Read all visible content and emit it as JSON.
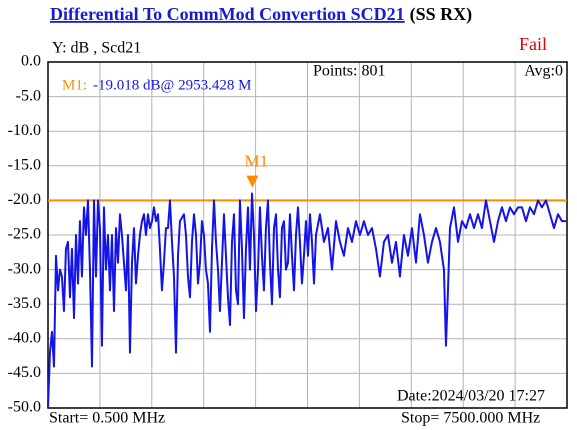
{
  "chart_data": {
    "type": "line",
    "title": "Differential To CommMod Convertion SCD21",
    "title_suffix": "(SS RX)",
    "y_label": "Y: dB , Scd21",
    "status": "Fail",
    "points_info": "Points: 801",
    "avg_info": "Avg:0",
    "date": "Date:2024/03/20 17:27",
    "start": "Start= 0.500 MHz",
    "stop": "Stop= 7500.000 MHz",
    "xlim": [
      0.5,
      7500
    ],
    "ylim": [
      -50,
      0
    ],
    "yticks": [
      {
        "value": 0,
        "label": "0.0"
      },
      {
        "value": -5,
        "label": "-5.0"
      },
      {
        "value": -10,
        "label": "-10.0"
      },
      {
        "value": -15,
        "label": "-15.0"
      },
      {
        "value": -20,
        "label": "-20.0"
      },
      {
        "value": -25,
        "label": "-25.0"
      },
      {
        "value": -30,
        "label": "-30.0"
      },
      {
        "value": -35,
        "label": "-35.0"
      },
      {
        "value": -40,
        "label": "-40.0"
      },
      {
        "value": -45,
        "label": "-45.0"
      },
      {
        "value": -50,
        "label": "-50.0"
      }
    ],
    "grid": true,
    "limit_line": {
      "value": -20,
      "color": "#ff8c00"
    },
    "marker": {
      "name": "M1",
      "label": "M1:",
      "readout": "-19.018 dB@ 2953.428 M",
      "x": 2953.428,
      "y": -19.018,
      "color": "#ff8c00"
    },
    "series": [
      {
        "name": "Scd21",
        "color": "#1414e6",
        "x": [
          0.5,
          29,
          58,
          87,
          116,
          145,
          173,
          202,
          231,
          260,
          289,
          318,
          347,
          376,
          405,
          434,
          462,
          491,
          520,
          549,
          578,
          607,
          636,
          665,
          694,
          723,
          751,
          780,
          809,
          838,
          867,
          896,
          925,
          954,
          983,
          1012,
          1040,
          1069,
          1098,
          1127,
          1156,
          1185,
          1214,
          1243,
          1272,
          1301,
          1329,
          1358,
          1387,
          1416,
          1445,
          1474,
          1503,
          1532,
          1561,
          1590,
          1618,
          1647,
          1676,
          1705,
          1734,
          1763,
          1792,
          1821,
          1850,
          1879,
          1907,
          1965,
          1994,
          2023,
          2052,
          2081,
          2110,
          2139,
          2168,
          2196,
          2225,
          2254,
          2283,
          2312,
          2341,
          2370,
          2399,
          2428,
          2457,
          2485,
          2514,
          2543,
          2572,
          2601,
          2630,
          2659,
          2688,
          2717,
          2746,
          2774,
          2803,
          2832,
          2861,
          2890,
          2919,
          2948,
          2977,
          3006,
          3035,
          3063,
          3092,
          3121,
          3150,
          3179,
          3208,
          3237,
          3266,
          3295,
          3324,
          3352,
          3381,
          3410,
          3439,
          3468,
          3497,
          3526,
          3555,
          3584,
          3613,
          3641,
          3670,
          3699,
          3728,
          3757,
          3786,
          3815,
          3844,
          3873,
          3930,
          3988,
          4046,
          4104,
          4162,
          4219,
          4277,
          4335,
          4393,
          4451,
          4508,
          4566,
          4624,
          4682,
          4740,
          4797,
          4855,
          4913,
          4971,
          5029,
          5086,
          5144,
          5202,
          5260,
          5318,
          5375,
          5433,
          5491,
          5549,
          5607,
          5664,
          5722,
          5751,
          5780,
          5809,
          5867,
          5925,
          5982,
          6040,
          6098,
          6156,
          6214,
          6271,
          6329,
          6387,
          6445,
          6503,
          6560,
          6618,
          6676,
          6734,
          6792,
          6849,
          6907,
          6965,
          7023,
          7081,
          7138,
          7196,
          7254,
          7312,
          7370,
          7427,
          7485
        ],
        "values": [
          -50,
          -42,
          -39,
          -44,
          -28,
          -33,
          -30,
          -31,
          -36,
          -27,
          -26,
          -34,
          -27,
          -37,
          -25,
          -32,
          -23,
          -31,
          -21,
          -25,
          -20,
          -30,
          -44,
          -20,
          -31,
          -20,
          -24,
          -41,
          -21,
          -30,
          -25,
          -33,
          -25,
          -36,
          -24,
          -29,
          -22,
          -25,
          -29,
          -33,
          -25,
          -42,
          -29,
          -24,
          -32,
          -28,
          -25,
          -23,
          -22,
          -25,
          -22,
          -24,
          -23,
          -21,
          -23,
          -22,
          -27,
          -33,
          -29,
          -24,
          -24,
          -20,
          -26,
          -31,
          -42,
          -28,
          -23,
          -22,
          -25,
          -31,
          -34,
          -26,
          -22,
          -25,
          -32,
          -29,
          -23,
          -25,
          -30,
          -32,
          -39,
          -27,
          -20,
          -26,
          -30,
          -36,
          -29,
          -22,
          -28,
          -34,
          -38,
          -26,
          -22,
          -33,
          -35,
          -20,
          -27,
          -37,
          -27,
          -21,
          -30,
          -19,
          -25,
          -36,
          -30,
          -21,
          -28,
          -33,
          -24,
          -20,
          -29,
          -35,
          -24,
          -22,
          -30,
          -34,
          -24,
          -23,
          -30,
          -29,
          -22,
          -28,
          -33,
          -25,
          -21,
          -26,
          -32,
          -28,
          -23,
          -28,
          -22,
          -26,
          -32,
          -25,
          -22,
          -26,
          -24,
          -30,
          -23,
          -26,
          -28,
          -24,
          -26,
          -23,
          -25,
          -23,
          -25,
          -24,
          -27,
          -31,
          -26,
          -25,
          -29,
          -26,
          -31,
          -25,
          -28,
          -24,
          -29,
          -22,
          -25,
          -29,
          -26,
          -24,
          -26,
          -30,
          -41,
          -33,
          -24,
          -21,
          -26,
          -23,
          -24,
          -22,
          -24,
          -22,
          -24,
          -20,
          -23,
          -26,
          -23,
          -21,
          -23,
          -21,
          -22,
          -21,
          -21,
          -23,
          -21,
          -22,
          -20,
          -21,
          -20,
          -22,
          -24,
          -22,
          -23,
          -23
        ]
      }
    ]
  }
}
